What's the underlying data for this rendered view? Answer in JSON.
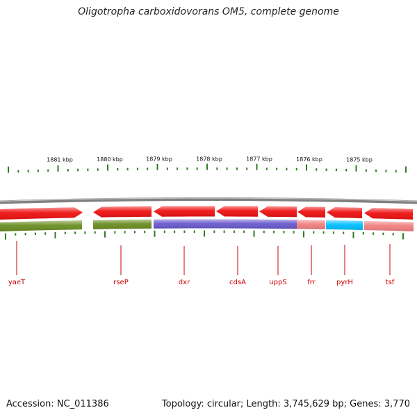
{
  "title": "Oligotropha carboxidovorans OM5, complete genome",
  "footer": {
    "accession": "Accession: NC_011386",
    "summary": "Topology: circular; Length: 3,745,629 bp; Genes: 3,770"
  },
  "colors": {
    "backbone": "#808080",
    "tick": "#2e7d20",
    "gene_label": "#cc0000",
    "cds_strand": "#ee1111",
    "leader_line": "#cc0000"
  },
  "kbp_labels": [
    "1881 kbp",
    "1880 kbp",
    "1879 kbp",
    "1878 kbp",
    "1877 kbp",
    "1876 kbp",
    "1875 kbp"
  ],
  "cds_track": [
    {
      "id": "cds-1",
      "direction": "forward",
      "color": "#ee1111"
    },
    {
      "id": "cds-2",
      "direction": "reverse",
      "color": "#ee1111"
    },
    {
      "id": "cds-3",
      "direction": "reverse",
      "color": "#ee1111"
    },
    {
      "id": "cds-4",
      "direction": "reverse",
      "color": "#ee1111"
    },
    {
      "id": "cds-5",
      "direction": "reverse",
      "color": "#ee1111"
    },
    {
      "id": "cds-6",
      "direction": "reverse",
      "color": "#ee1111"
    },
    {
      "id": "cds-7",
      "direction": "reverse",
      "color": "#ee1111"
    },
    {
      "id": "cds-8",
      "direction": "reverse",
      "color": "#ee1111"
    }
  ],
  "category_track": [
    {
      "id": "cat-1",
      "color": "#6b8e23"
    },
    {
      "id": "cat-2",
      "color": "#6b8e23"
    },
    {
      "id": "cat-3",
      "color": "#6a5acd"
    },
    {
      "id": "cat-4",
      "color": "#6a5acd"
    },
    {
      "id": "cat-5",
      "color": "#f08080"
    },
    {
      "id": "cat-6",
      "color": "#00bfff"
    },
    {
      "id": "cat-7",
      "color": "#f08080"
    }
  ],
  "genes": [
    {
      "name": "yaeT"
    },
    {
      "name": "rseP"
    },
    {
      "name": "dxr"
    },
    {
      "name": "cdsA"
    },
    {
      "name": "uppS"
    },
    {
      "name": "frr"
    },
    {
      "name": "pyrH"
    },
    {
      "name": "tsf"
    }
  ]
}
